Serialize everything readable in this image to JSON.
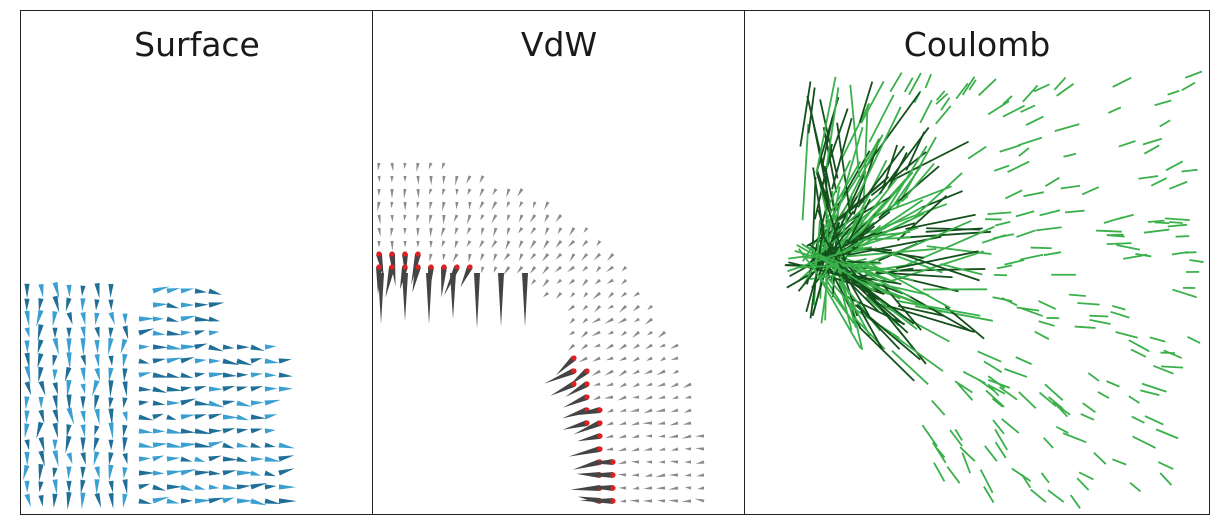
{
  "panels": [
    {
      "id": "surface",
      "title": "Surface",
      "glyph_color": "#3a9fd1",
      "glyph_shade": "#1f6f99"
    },
    {
      "id": "vdw",
      "title": "VdW",
      "glyph_color": "#8a8a8a",
      "glyph_shade": "#444444",
      "highlight_color": "#e02020"
    },
    {
      "id": "coulomb",
      "title": "Coulomb",
      "glyph_color": "#3ab04a",
      "glyph_shade": "#14501c"
    }
  ]
}
